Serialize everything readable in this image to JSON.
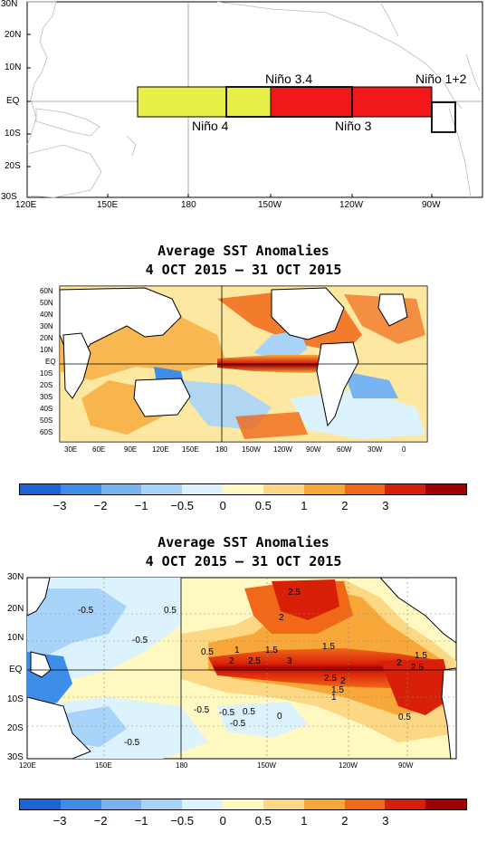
{
  "panel1": {
    "lat_ticks": [
      "30N",
      "20N",
      "10N",
      "EQ",
      "10S",
      "20S",
      "30S"
    ],
    "lon_ticks": [
      "120E",
      "150E",
      "180",
      "150W",
      "120W",
      "90W"
    ],
    "regions": {
      "nino4": {
        "label": "Niño 4",
        "color": "#e8f048"
      },
      "nino34": {
        "label": "Niño 3.4"
      },
      "nino3": {
        "label": "Niño 3",
        "color": "#f01818"
      },
      "nino12": {
        "label": "Niño 1+2"
      }
    }
  },
  "panel2": {
    "title_line1": "Average SST Anomalies",
    "title_line2": "4 OCT 2015 – 31 OCT 2015",
    "lat_ticks": [
      "60N",
      "50N",
      "40N",
      "30N",
      "20N",
      "10N",
      "EQ",
      "10S",
      "20S",
      "30S",
      "40S",
      "50S",
      "60S"
    ],
    "lon_ticks": [
      "30E",
      "60E",
      "90E",
      "120E",
      "150E",
      "180",
      "150W",
      "120W",
      "90W",
      "60W",
      "30W",
      "0"
    ]
  },
  "colorbar": {
    "colors": [
      "#1a64d6",
      "#3c8ee8",
      "#78b4f4",
      "#a8d4fa",
      "#dcf2fc",
      "#fff8c0",
      "#fcd884",
      "#f8a838",
      "#f06818",
      "#d82008",
      "#a00000"
    ],
    "labels": [
      "−3",
      "−2",
      "−1",
      "−0.5",
      "0",
      "0.5",
      "1",
      "2",
      "3"
    ]
  },
  "panel3": {
    "title_line1": "Average SST Anomalies",
    "title_line2": "4 OCT 2015 – 31 OCT 2015",
    "lat_ticks": [
      "30N",
      "20N",
      "10N",
      "EQ",
      "10S",
      "20S",
      "30S"
    ],
    "lon_ticks": [
      "120E",
      "150E",
      "180",
      "150W",
      "120W",
      "90W"
    ],
    "contour_labels": [
      "-0.5",
      "0.5",
      "-0.5",
      "0.5",
      "1",
      "1.5",
      "1.5",
      "2",
      "2.5",
      "3",
      "2.5",
      "2",
      "2.5",
      "2",
      "1.5",
      "1",
      "1.5",
      "2.5",
      "2",
      "0.5",
      "-0.5",
      "-0.5",
      "0.5",
      "0",
      "-0.5",
      "-0.5",
      "2.5",
      "2",
      "0",
      "0.5",
      "0.5"
    ]
  },
  "colorbar2": {
    "labels": [
      "−3",
      "−2",
      "−1",
      "−0.5",
      "0",
      "0.5",
      "1",
      "2",
      "3"
    ]
  }
}
